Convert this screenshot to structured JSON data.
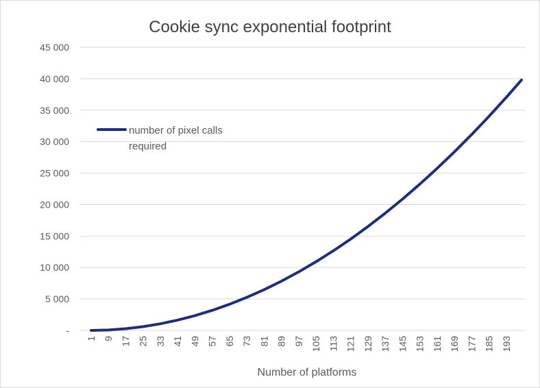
{
  "chart_data": {
    "type": "line",
    "title": "Cookie sync exponential footprint",
    "xlabel": "Number of platforms",
    "ylabel": "",
    "ylim": [
      0,
      45000
    ],
    "yticks": [
      0,
      5000,
      10000,
      15000,
      20000,
      25000,
      30000,
      35000,
      40000,
      45000
    ],
    "ytick_labels": [
      "-",
      "5 000",
      "10 000",
      "15 000",
      "20 000",
      "25 000",
      "30 000",
      "35 000",
      "40 000",
      "45 000"
    ],
    "xlim": [
      1,
      200
    ],
    "xtick_labels": [
      "1",
      "9",
      "17",
      "25",
      "33",
      "41",
      "49",
      "57",
      "65",
      "73",
      "81",
      "89",
      "97",
      "105",
      "113",
      "121",
      "129",
      "137",
      "145",
      "153",
      "161",
      "169",
      "177",
      "185",
      "193"
    ],
    "grid": true,
    "legend_position": "left",
    "series": [
      {
        "name": "number of pixel calls required",
        "legend_lines": [
          "number of pixel calls",
          "required"
        ],
        "color": "#1f2d7a",
        "x": [
          1,
          9,
          17,
          25,
          33,
          41,
          49,
          57,
          65,
          73,
          81,
          89,
          97,
          105,
          113,
          121,
          129,
          137,
          145,
          153,
          161,
          169,
          177,
          185,
          193,
          200
        ],
        "values": [
          0,
          72,
          272,
          600,
          1056,
          1640,
          2352,
          3192,
          4160,
          5256,
          6480,
          7832,
          9312,
          10920,
          12656,
          14520,
          16512,
          18632,
          20880,
          23256,
          25760,
          28392,
          31152,
          34040,
          37056,
          39800
        ]
      }
    ]
  }
}
